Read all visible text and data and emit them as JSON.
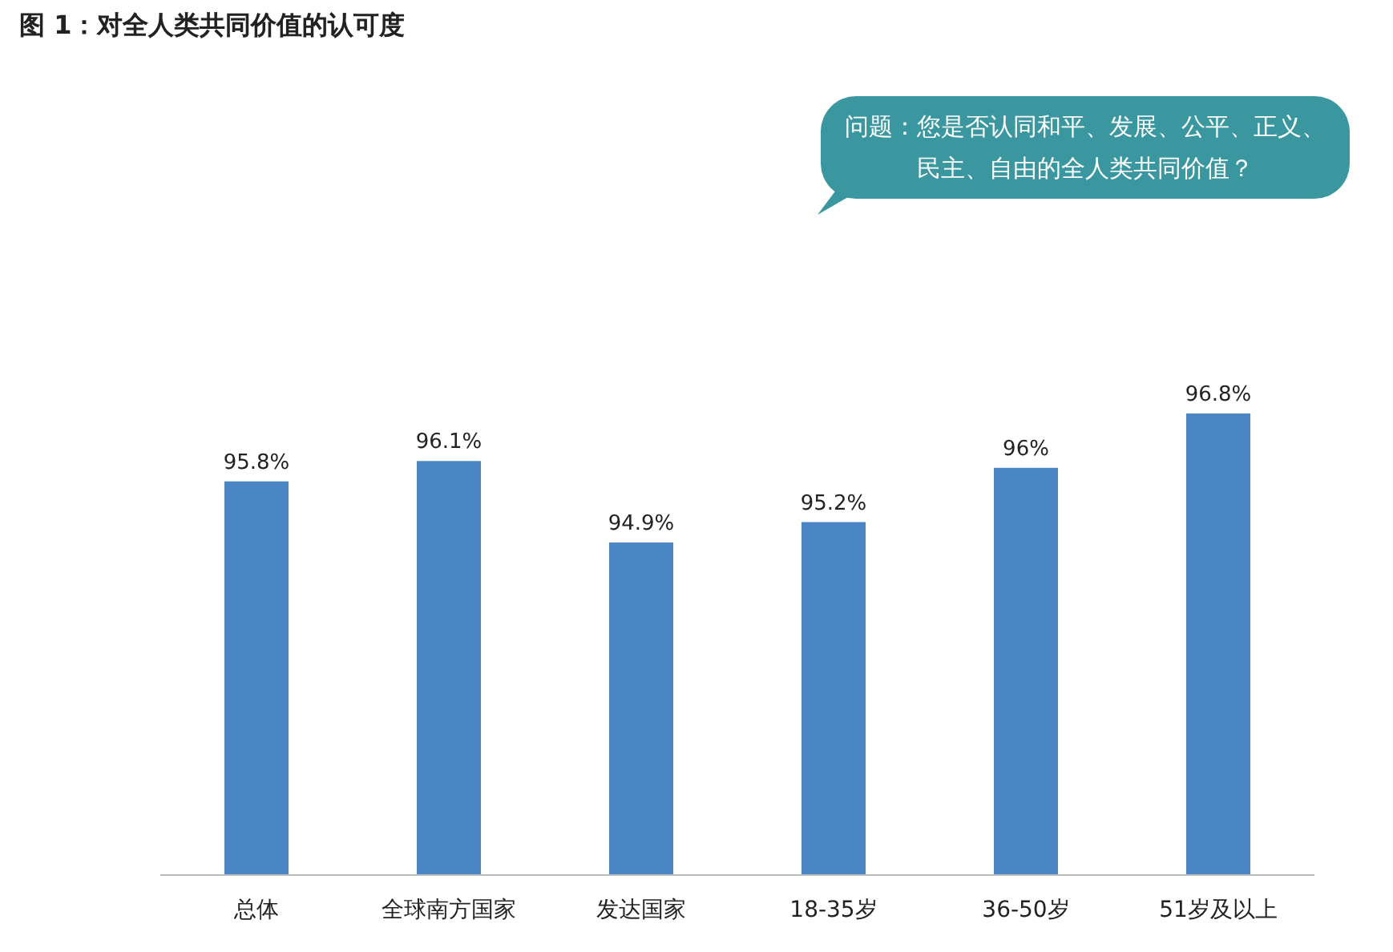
{
  "chart_data": {
    "type": "bar",
    "title": "图 1：对全人类共同价值的认可度",
    "categories": [
      "总体",
      "全球南方国家",
      "发达国家",
      "18-35岁",
      "36-50岁",
      "51岁及以上"
    ],
    "values": [
      95.8,
      96.1,
      94.9,
      95.2,
      96,
      96.8
    ],
    "value_labels": [
      "95.8%",
      "96.1%",
      "94.9%",
      "95.2%",
      "96%",
      "96.8%"
    ],
    "color": "#4a86c5",
    "ylim": [
      90,
      96.8
    ],
    "annotations": [
      "问题：您是否认同和平、发展、公平、正义、民主、自由的全人类共同价值？"
    ]
  }
}
